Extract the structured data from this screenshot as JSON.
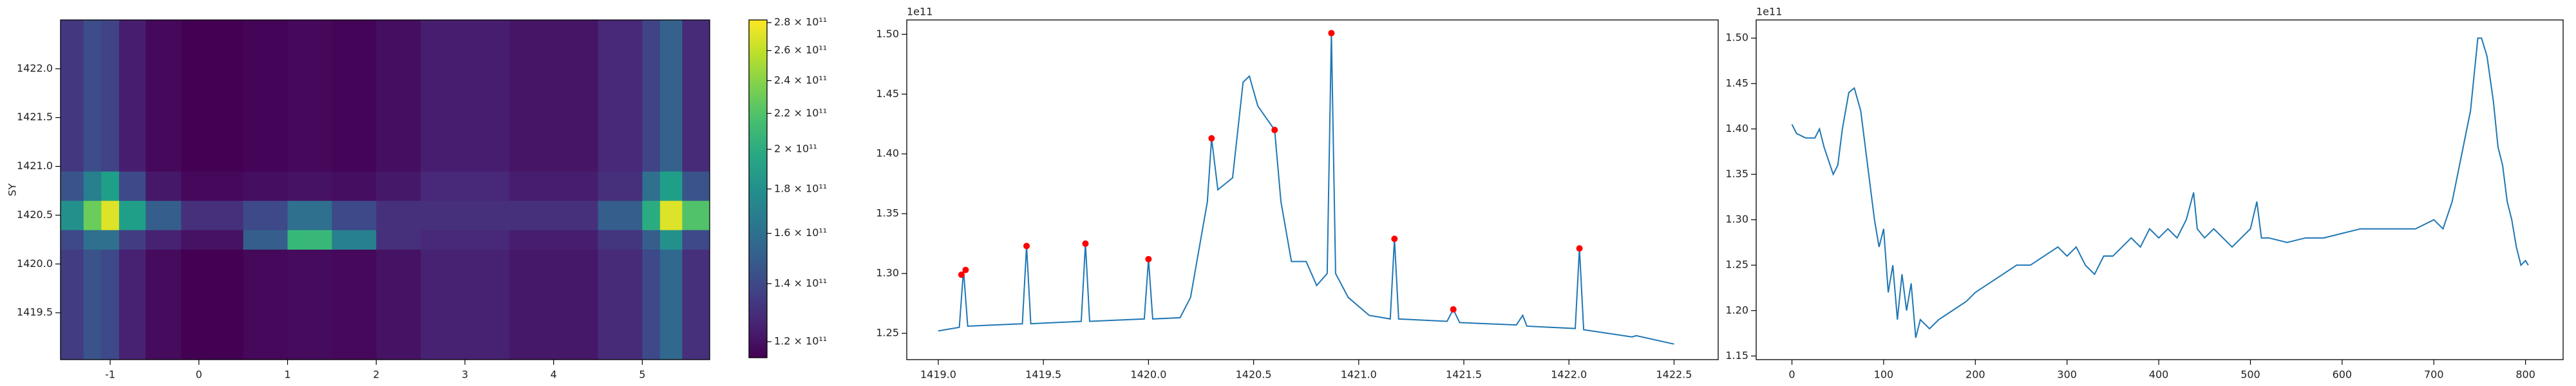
{
  "chart_data": [
    {
      "type": "heatmap",
      "ylabel": "SY",
      "x": [
        -1.56,
        -1.3,
        -1.1,
        -0.9,
        -0.6,
        -0.2,
        0.5,
        1.0,
        1.5,
        2.0,
        2.5,
        3.5,
        4.5,
        5.0,
        5.2,
        5.45,
        5.76
      ],
      "y": [
        1419.02,
        1420.15,
        1420.35,
        1420.65,
        1420.95,
        1422.5
      ],
      "z": [
        [
          135000000000.0,
          145000000000.0,
          140000000000.0,
          125000000000.0,
          118000000000.0,
          115000000000.0,
          117000000000.0,
          118000000000.0,
          117000000000.0,
          120000000000.0,
          125000000000.0,
          122000000000.0,
          128000000000.0,
          140000000000.0,
          155000000000.0,
          130000000000.0
        ],
        [
          140000000000.0,
          160000000000.0,
          160000000000.0,
          135000000000.0,
          125000000000.0,
          120000000000.0,
          150000000000.0,
          210000000000.0,
          170000000000.0,
          130000000000.0,
          127000000000.0,
          124000000000.0,
          132000000000.0,
          150000000000.0,
          180000000000.0,
          140000000000.0
        ],
        [
          180000000000.0,
          230000000000.0,
          270000000000.0,
          190000000000.0,
          150000000000.0,
          130000000000.0,
          140000000000.0,
          160000000000.0,
          140000000000.0,
          130000000000.0,
          130000000000.0,
          130000000000.0,
          150000000000.0,
          200000000000.0,
          270000000000.0,
          220000000000.0
        ],
        [
          145000000000.0,
          170000000000.0,
          190000000000.0,
          140000000000.0,
          122000000000.0,
          117000000000.0,
          119000000000.0,
          120000000000.0,
          119000000000.0,
          122000000000.0,
          127000000000.0,
          124000000000.0,
          130000000000.0,
          160000000000.0,
          190000000000.0,
          145000000000.0
        ],
        [
          133000000000.0,
          142000000000.0,
          138000000000.0,
          124000000000.0,
          117000000000.0,
          115000000000.0,
          116000000000.0,
          117000000000.0,
          116000000000.0,
          119000000000.0,
          124000000000.0,
          121000000000.0,
          127000000000.0,
          138000000000.0,
          152000000000.0,
          128000000000.0
        ]
      ],
      "xlim": [
        -1.56,
        5.76
      ],
      "ylim": [
        1419.02,
        1422.5
      ],
      "xticks": [
        -1,
        0,
        1,
        2,
        3,
        4,
        5
      ],
      "yticks": [
        1419.5,
        {
          "value": 1420,
          "label": "1420.0"
        },
        1420.5,
        {
          "value": 1421,
          "label": "1421.0"
        },
        1421.5,
        {
          "value": 1422,
          "label": "1422.0"
        }
      ],
      "colormap": "viridis",
      "log_color": true,
      "clim": [
        115000000000.0,
        282000000000.0
      ],
      "cticks": [
        {
          "value": 120000000000.0,
          "label": "1.2 × 10¹¹"
        },
        {
          "value": 140000000000.0,
          "label": "1.4 × 10¹¹"
        },
        {
          "value": 160000000000.0,
          "label": "1.6 × 10¹¹"
        },
        {
          "value": 180000000000.0,
          "label": "1.8 × 10¹¹"
        },
        {
          "value": 200000000000.0,
          "label": "2 × 10¹¹"
        },
        {
          "value": 220000000000.0,
          "label": "2.2 × 10¹¹"
        },
        {
          "value": 240000000000.0,
          "label": "2.4 × 10¹¹"
        },
        {
          "value": 260000000000.0,
          "label": "2.6 × 10¹¹"
        },
        {
          "value": 280000000000.0,
          "label": "2.8 × 10¹¹"
        }
      ]
    },
    {
      "type": "line",
      "offset_text": "1e11",
      "xlim": [
        1418.85,
        1422.71
      ],
      "ylim": [
        1.228,
        1.512
      ],
      "xticks": [
        {
          "value": 1419,
          "label": "1419.0"
        },
        1419.5,
        {
          "value": 1420,
          "label": "1420.0"
        },
        1420.5,
        {
          "value": 1421,
          "label": "1421.0"
        },
        1421.5,
        {
          "value": 1422,
          "label": "1422.0"
        },
        1422.5
      ],
      "yticks": [
        1.25,
        {
          "value": 1.3,
          "label": "1.30"
        },
        1.35,
        {
          "value": 1.4,
          "label": "1.40"
        },
        1.45,
        {
          "value": 1.5,
          "label": "1.50"
        }
      ],
      "series": [
        {
          "color": "#1f77b4",
          "style": "line",
          "x": [
            1419.0,
            1419.1,
            1419.12,
            1419.14,
            1419.4,
            1419.42,
            1419.44,
            1419.68,
            1419.7,
            1419.72,
            1419.98,
            1420.0,
            1420.02,
            1420.15,
            1420.2,
            1420.25,
            1420.28,
            1420.3,
            1420.33,
            1420.4,
            1420.45,
            1420.48,
            1420.52,
            1420.56,
            1420.6,
            1420.63,
            1420.68,
            1420.75,
            1420.8,
            1420.85,
            1420.87,
            1420.89,
            1420.95,
            1421.05,
            1421.15,
            1421.17,
            1421.19,
            1421.42,
            1421.45,
            1421.48,
            1421.75,
            1421.78,
            1421.8,
            1422.03,
            1422.05,
            1422.07,
            1422.3,
            1422.32,
            1422.5
          ],
          "values": [
            1.252,
            1.255,
            1.303,
            1.256,
            1.258,
            1.323,
            1.258,
            1.26,
            1.325,
            1.26,
            1.262,
            1.312,
            1.262,
            1.263,
            1.28,
            1.33,
            1.36,
            1.413,
            1.37,
            1.38,
            1.46,
            1.465,
            1.44,
            1.43,
            1.42,
            1.36,
            1.31,
            1.31,
            1.29,
            1.3,
            1.501,
            1.3,
            1.28,
            1.265,
            1.262,
            1.329,
            1.262,
            1.26,
            1.27,
            1.259,
            1.257,
            1.265,
            1.256,
            1.254,
            1.321,
            1.253,
            1.247,
            1.248,
            1.241
          ]
        },
        {
          "color": "#ff0000",
          "style": "scatter",
          "x": [
            1419.11,
            1419.13,
            1419.42,
            1419.7,
            1420.0,
            1420.3,
            1420.6,
            1420.87,
            1421.17,
            1421.45,
            1422.05
          ],
          "values": [
            1.299,
            1.303,
            1.323,
            1.325,
            1.312,
            1.413,
            1.42,
            1.501,
            1.329,
            1.27,
            1.321
          ]
        }
      ]
    },
    {
      "type": "line",
      "offset_text": "1e11",
      "xlim": [
        -39,
        841
      ],
      "ylim": [
        1.146,
        1.52
      ],
      "xticks": [
        0,
        100,
        200,
        300,
        400,
        500,
        600,
        700,
        800
      ],
      "yticks": [
        1.15,
        {
          "value": 1.2,
          "label": "1.20"
        },
        1.25,
        {
          "value": 1.3,
          "label": "1.30"
        },
        1.35,
        {
          "value": 1.4,
          "label": "1.40"
        },
        1.45,
        {
          "value": 1.5,
          "label": "1.50"
        }
      ],
      "series": [
        {
          "color": "#1f77b4",
          "style": "line",
          "x": [
            0,
            5,
            15,
            25,
            30,
            35,
            45,
            50,
            55,
            62,
            68,
            75,
            80,
            90,
            95,
            100,
            105,
            110,
            115,
            120,
            125,
            130,
            135,
            140,
            150,
            160,
            175,
            190,
            200,
            215,
            230,
            245,
            260,
            275,
            290,
            300,
            310,
            320,
            330,
            340,
            350,
            360,
            370,
            380,
            390,
            400,
            410,
            420,
            430,
            438,
            442,
            450,
            460,
            470,
            480,
            490,
            500,
            507,
            512,
            520,
            540,
            560,
            580,
            600,
            620,
            640,
            660,
            680,
            700,
            710,
            720,
            730,
            740,
            748,
            752,
            758,
            765,
            770,
            775,
            780,
            785,
            790,
            795,
            800,
            803
          ],
          "values": [
            1.405,
            1.395,
            1.39,
            1.39,
            1.4,
            1.38,
            1.35,
            1.36,
            1.4,
            1.44,
            1.445,
            1.42,
            1.38,
            1.3,
            1.27,
            1.29,
            1.22,
            1.25,
            1.19,
            1.24,
            1.2,
            1.23,
            1.17,
            1.19,
            1.18,
            1.19,
            1.2,
            1.21,
            1.22,
            1.23,
            1.24,
            1.25,
            1.25,
            1.26,
            1.27,
            1.26,
            1.27,
            1.25,
            1.24,
            1.26,
            1.26,
            1.27,
            1.28,
            1.27,
            1.29,
            1.28,
            1.29,
            1.28,
            1.3,
            1.33,
            1.29,
            1.28,
            1.29,
            1.28,
            1.27,
            1.28,
            1.29,
            1.32,
            1.28,
            1.28,
            1.275,
            1.28,
            1.28,
            1.285,
            1.29,
            1.29,
            1.29,
            1.29,
            1.3,
            1.29,
            1.32,
            1.37,
            1.42,
            1.5,
            1.5,
            1.48,
            1.43,
            1.38,
            1.36,
            1.32,
            1.3,
            1.27,
            1.25,
            1.255,
            1.25
          ]
        }
      ]
    }
  ]
}
